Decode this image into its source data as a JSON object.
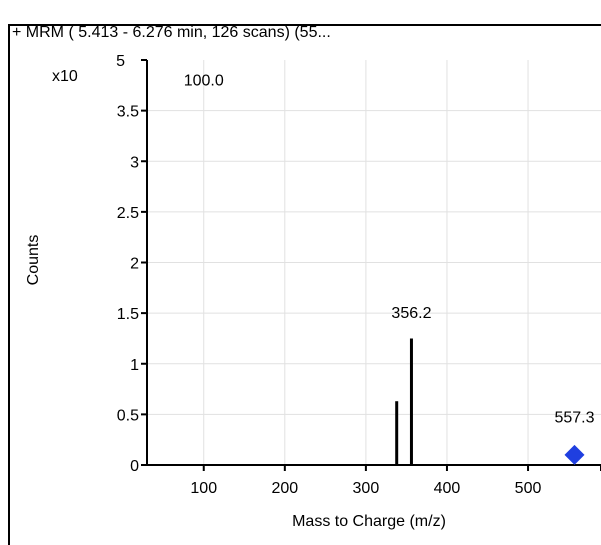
{
  "chart_data": {
    "type": "bar",
    "title": "+ MRM ( 5.413 - 6.276 min, 126 scans) (55...",
    "xlabel": "Mass to Charge (m/z)",
    "ylabel": "Counts",
    "y_multiplier_label": "x10",
    "y_exponent": "5",
    "xlim": [
      30,
      590
    ],
    "ylim": [
      0,
      4.0
    ],
    "x_ticks": [
      100,
      200,
      300,
      400,
      500
    ],
    "y_ticks": [
      {
        "value": 0,
        "label": "0"
      },
      {
        "value": 0.5,
        "label": "0.5"
      },
      {
        "value": 1.0,
        "label": "1"
      },
      {
        "value": 1.5,
        "label": "1.5"
      },
      {
        "value": 2.0,
        "label": "2"
      },
      {
        "value": 2.5,
        "label": "2.5"
      },
      {
        "value": 3.0,
        "label": "3"
      },
      {
        "value": 3.5,
        "label": "3.5"
      }
    ],
    "grid": true,
    "series": [
      {
        "x": [
          338,
          356.2
        ],
        "values": [
          0.63,
          1.25
        ]
      }
    ],
    "annotations": [
      {
        "text": "100.0",
        "x": 100,
        "y": 3.75
      },
      {
        "text": "356.2",
        "x": 356.2,
        "y": 1.45
      },
      {
        "text": "557.3",
        "x": 557.3,
        "y": 0.42
      }
    ],
    "markers": [
      {
        "x": 557.3,
        "y": 0.1,
        "shape": "diamond",
        "color": "#1f3fe0"
      }
    ],
    "colors": {
      "peak": "#000000",
      "grid": "#e1e1e1",
      "marker": "#1f3fe0"
    }
  }
}
